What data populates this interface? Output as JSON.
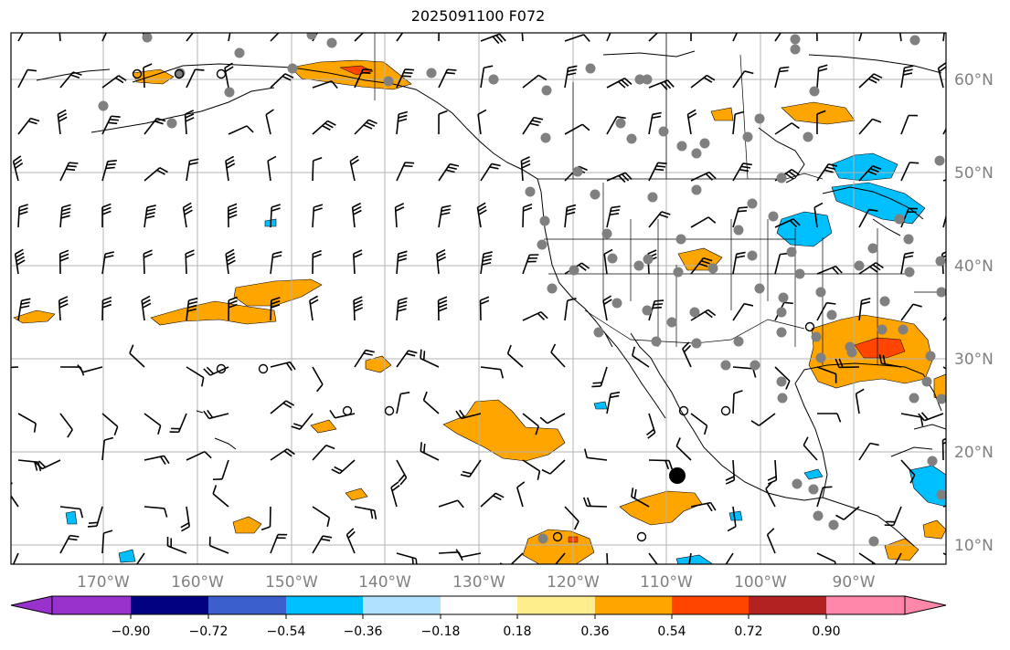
{
  "title": "2025091100 F072",
  "map": {
    "projection": "PlateCarree",
    "extent_lon": [
      -178,
      -80
    ],
    "extent_lat": [
      8,
      65
    ],
    "lon_ticks": [
      "170°W",
      "160°W",
      "150°W",
      "140°W",
      "130°W",
      "120°W",
      "110°W",
      "100°W",
      "90°W"
    ],
    "lat_ticks": [
      "60°N",
      "50°N",
      "40°N",
      "30°N",
      "20°N",
      "10°N"
    ],
    "gridlines": true
  },
  "colorbar": {
    "orientation": "horizontal",
    "extend": "both",
    "tick_labels": [
      "−0.90",
      "−0.72",
      "−0.54",
      "−0.36",
      "−0.18",
      "0.18",
      "0.36",
      "0.54",
      "0.72",
      "0.90"
    ],
    "colors": [
      "#9932cc",
      "#000080",
      "#3a5fcd",
      "#00bfff",
      "#b0e2ff",
      "#ffffff",
      "#ffec8b",
      "#ffa500",
      "#ff4500",
      "#b22222",
      "#ff88aa"
    ]
  },
  "overlays": {
    "wind_barbs": "black barbs on a regular lat/lon grid",
    "station_markers": "gray filled circles",
    "open_circles": "small black open circles",
    "big_marker": "large black filled circle near 109W 17N"
  }
}
